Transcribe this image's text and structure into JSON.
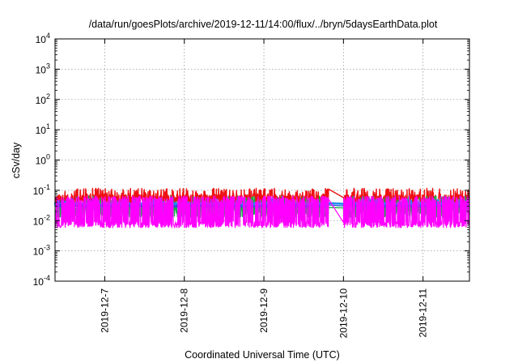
{
  "chart_data": {
    "type": "line",
    "title": "/data/run/goesPlots/archive/2019-12-11/14:00/flux/../bryn/5daysEarthData.plot",
    "xlabel": "Coordinated Universal Time (UTC)",
    "ylabel": "cSv/day",
    "y_scale": "log",
    "ylim": [
      0.0001,
      10000
    ],
    "y_ticks": [
      {
        "value": 0.0001,
        "mantissa": "10",
        "exp": "-4"
      },
      {
        "value": 0.001,
        "mantissa": "10",
        "exp": "-3"
      },
      {
        "value": 0.01,
        "mantissa": "10",
        "exp": "-2"
      },
      {
        "value": 0.1,
        "mantissa": "10",
        "exp": "-1"
      },
      {
        "value": 1,
        "mantissa": "10",
        "exp": "0"
      },
      {
        "value": 10,
        "mantissa": "10",
        "exp": "1"
      },
      {
        "value": 100,
        "mantissa": "10",
        "exp": "2"
      },
      {
        "value": 1000,
        "mantissa": "10",
        "exp": "3"
      },
      {
        "value": 10000,
        "mantissa": "10",
        "exp": "4"
      }
    ],
    "xlim": [
      "2019-12-06T09:00",
      "2019-12-11T14:00"
    ],
    "x_ticks": [
      "2019-12-7",
      "2019-12-8",
      "2019-12-9",
      "2019-12-10",
      "2019-12-11"
    ],
    "x_tick_dates": [
      "2019-12-07",
      "2019-12-08",
      "2019-12-09",
      "2019-12-10",
      "2019-12-11"
    ],
    "grid": true,
    "legend": "none",
    "gap": [
      "2019-12-09T19:30",
      "2019-12-10T00:00"
    ],
    "series": [
      {
        "color": "#ee1111",
        "width": 1.4,
        "base": 0.048,
        "noise": 0.4,
        "spike": 0.09,
        "spike_prob": 0.18
      },
      {
        "color": "#15b04a",
        "width": 1.4,
        "base": 0.022,
        "noise": 0.55,
        "spike": 0.05,
        "spike_prob": 0.12
      },
      {
        "color": "#1c8ff0",
        "width": 2.6,
        "base": 0.034,
        "noise": 0.12,
        "spike": 0.04,
        "spike_prob": 0.05
      },
      {
        "color": "#2a4fd6",
        "width": 1.2,
        "base": 0.03,
        "noise": 0.1,
        "spike": 0.038,
        "spike_prob": 0.04
      },
      {
        "color": "#ff00ff",
        "width": 1.2,
        "base": 0.0075,
        "noise": 0.25,
        "spike": 0.05,
        "spike_prob": 0.45
      }
    ]
  }
}
